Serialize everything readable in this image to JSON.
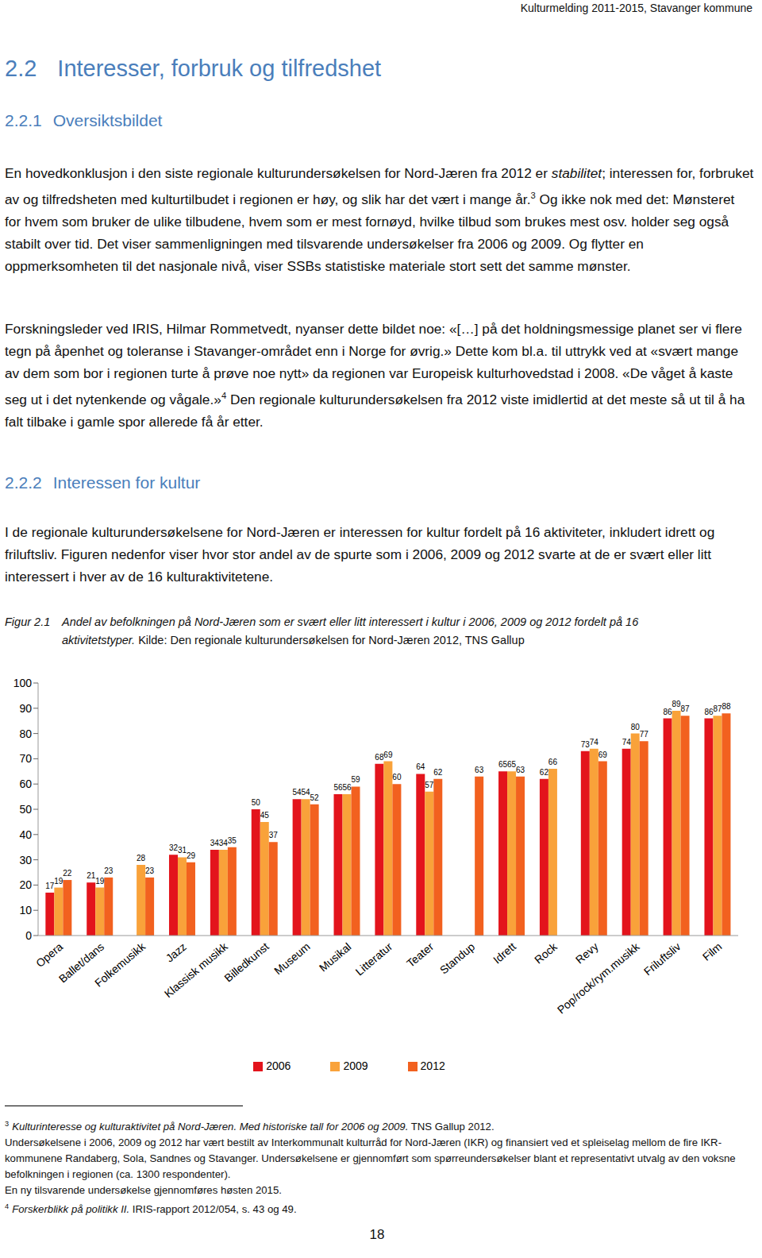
{
  "document": {
    "header": "Kulturmelding 2011-2015, Stavanger kommune",
    "blocks": [
      {
        "kind": "h1",
        "number": "2.2",
        "title": "Interesser, forbruk og tilfredshet"
      },
      {
        "kind": "h2",
        "number": "2.2.1",
        "title": "Oversiktsbildet"
      },
      {
        "kind": "p",
        "runs": [
          {
            "text": "En hovedkonklusjon i den siste regionale kulturundersøkelsen for Nord-Jæren fra 2012 er "
          },
          {
            "text": "stabilitet",
            "style": "italic"
          },
          {
            "text": "; interessen for, forbruket av og tilfredsheten med kulturtilbudet i regionen er høy, og slik har det vært i mange år."
          },
          {
            "text": "3",
            "style": "sup"
          },
          {
            "text": " Og ikke nok med det: Mønsteret for hvem som bruker de ulike tilbudene, hvem som er mest fornøyd, hvilke tilbud som brukes mest osv. holder seg også stabilt over tid. Det viser sammenligningen med tilsvarende undersøkelser fra 2006 og 2009. Og flytter en oppmerksomheten til det nasjonale nivå, viser SSBs statistiske materiale stort sett det samme mønster."
          }
        ]
      },
      {
        "kind": "p",
        "runs": [
          {
            "text": "Forskningsleder ved IRIS, Hilmar Rommetvedt, nyanser dette bildet noe: «[…] på det holdningsmessige planet ser vi flere tegn på åpenhet og toleranse i Stavanger-området enn i Norge for øvrig.» Dette kom bl.a. til uttrykk ved at «svært mange av dem som bor i regionen turte å prøve noe nytt» da regionen var Europeisk kulturhovedstad i 2008. «De våget å kaste seg ut i det nytenkende og vågale.»"
          },
          {
            "text": "4",
            "style": "sup"
          },
          {
            "text": " Den regionale kulturundersøkelsen fra 2012 viste imidlertid at det meste så ut til å ha falt tilbake i gamle spor allerede få år etter."
          }
        ]
      },
      {
        "kind": "h2",
        "number": "2.2.2",
        "title": "Interessen for kultur"
      },
      {
        "kind": "p",
        "runs": [
          {
            "text": "I de regionale kulturundersøkelsene for Nord-Jæren er interessen for kultur fordelt på 16 aktiviteter, inkludert idrett og friluftsliv. Figuren nedenfor viser hvor stor andel av de spurte som i 2006, 2009 og 2012 svarte at de er svært eller litt interessert i hver av de 16 kulturaktivitetene."
          }
        ]
      },
      {
        "kind": "caption",
        "label": "Figur 2.1",
        "runs": [
          {
            "text": "Andel av befolkningen på Nord-Jæren som er svært eller litt interessert i kultur i 2006, 2009 og 2012 fordelt på 16 aktivitetstyper.",
            "style": "italic"
          },
          {
            "text": " Kilde: Den regionale kulturundersøkelsen for Nord-Jæren 2012, TNS Gallup"
          }
        ]
      }
    ],
    "footnotes": [
      {
        "mark": "3",
        "runs": [
          {
            "text": "Kulturinteresse og kulturaktivitet på Nord-Jæren. Med historiske tall for 2006 og 2009.",
            "style": "italic"
          },
          {
            "text": " TNS Gallup 2012."
          }
        ]
      },
      {
        "runs": [
          {
            "text": "Undersøkelsene i 2006, 2009 og 2012 har vært bestilt av Interkommunalt kulturråd for Nord-Jæren (IKR) og finansiert ved et spleiselag mellom de fire IKR-kommunene Randaberg, Sola, Sandnes og Stavanger. Undersøkelsene er gjennomført som spørreundersøkelser blant et representativt utvalg av den voksne befolkningen i regionen (ca. 1300 respondenter)."
          }
        ]
      },
      {
        "runs": [
          {
            "text": "En ny tilsvarende undersøkelse gjennomføres høsten 2015."
          }
        ]
      },
      {
        "mark": "4",
        "runs": [
          {
            "text": "Forskerblikk på politikk II.",
            "style": "italic"
          },
          {
            "text": " IRIS-rapport 2012/054, s. 43 og 49."
          }
        ]
      }
    ],
    "page_number": "18"
  },
  "chart_data": {
    "type": "bar",
    "categories": [
      "Opera",
      "Ballet/dans",
      "Folkemusikk",
      "Jazz",
      "Klassisk musikk",
      "Billedkunst",
      "Museum",
      "Musikal",
      "Litteratur",
      "Teater",
      "Standup",
      "Idrett",
      "Rock",
      "Revy",
      "Pop/rock/rym.musikk",
      "Friluftsliv",
      "Film"
    ],
    "series": [
      {
        "name": "2006",
        "color": "#e3141c",
        "values": [
          17,
          21,
          null,
          32,
          34,
          50,
          54,
          56,
          68,
          64,
          null,
          65,
          62,
          73,
          74,
          86,
          86
        ]
      },
      {
        "name": "2009",
        "color": "#f9a23a",
        "values": [
          19,
          19,
          28,
          31,
          34,
          45,
          54,
          56,
          69,
          57,
          null,
          65,
          66,
          74,
          80,
          89,
          87
        ]
      },
      {
        "name": "2012",
        "color": "#f2611f",
        "values": [
          22,
          23,
          23,
          29,
          35,
          37,
          52,
          59,
          60,
          62,
          63,
          63,
          null,
          69,
          77,
          87,
          88
        ]
      }
    ],
    "ylim": [
      0,
      100
    ],
    "yticks": [
      0,
      10,
      20,
      30,
      40,
      50,
      60,
      70,
      80,
      90,
      100
    ],
    "grid": false,
    "data_labels": true,
    "legend": "bottom"
  }
}
